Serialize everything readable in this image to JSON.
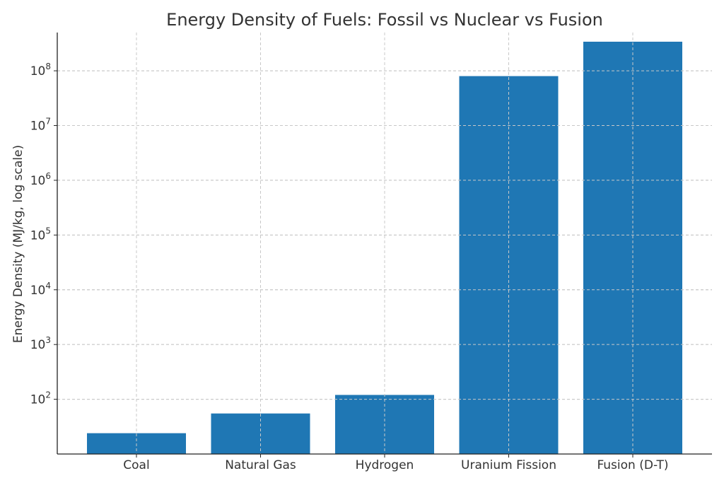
{
  "chart_data": {
    "type": "bar",
    "title": "Energy Density of Fuels: Fossil vs Nuclear vs Fusion",
    "xlabel": "",
    "ylabel": "Energy Density (MJ/kg, log scale)",
    "yscale": "log",
    "ylim": [
      10,
      500000000
    ],
    "categories": [
      "Coal",
      "Natural Gas",
      "Hydrogen",
      "Uranium Fission",
      "Fusion (D-T)"
    ],
    "values": [
      24,
      55,
      120,
      80000000,
      340000000
    ],
    "yticks": [
      {
        "value": 100,
        "base": "10",
        "exp": "2"
      },
      {
        "value": 1000,
        "base": "10",
        "exp": "3"
      },
      {
        "value": 10000,
        "base": "10",
        "exp": "4"
      },
      {
        "value": 100000,
        "base": "10",
        "exp": "5"
      },
      {
        "value": 1000000,
        "base": "10",
        "exp": "6"
      },
      {
        "value": 10000000,
        "base": "10",
        "exp": "7"
      },
      {
        "value": 100000000,
        "base": "10",
        "exp": "8"
      }
    ],
    "grid": true,
    "bar_color": "#1f77b4"
  }
}
